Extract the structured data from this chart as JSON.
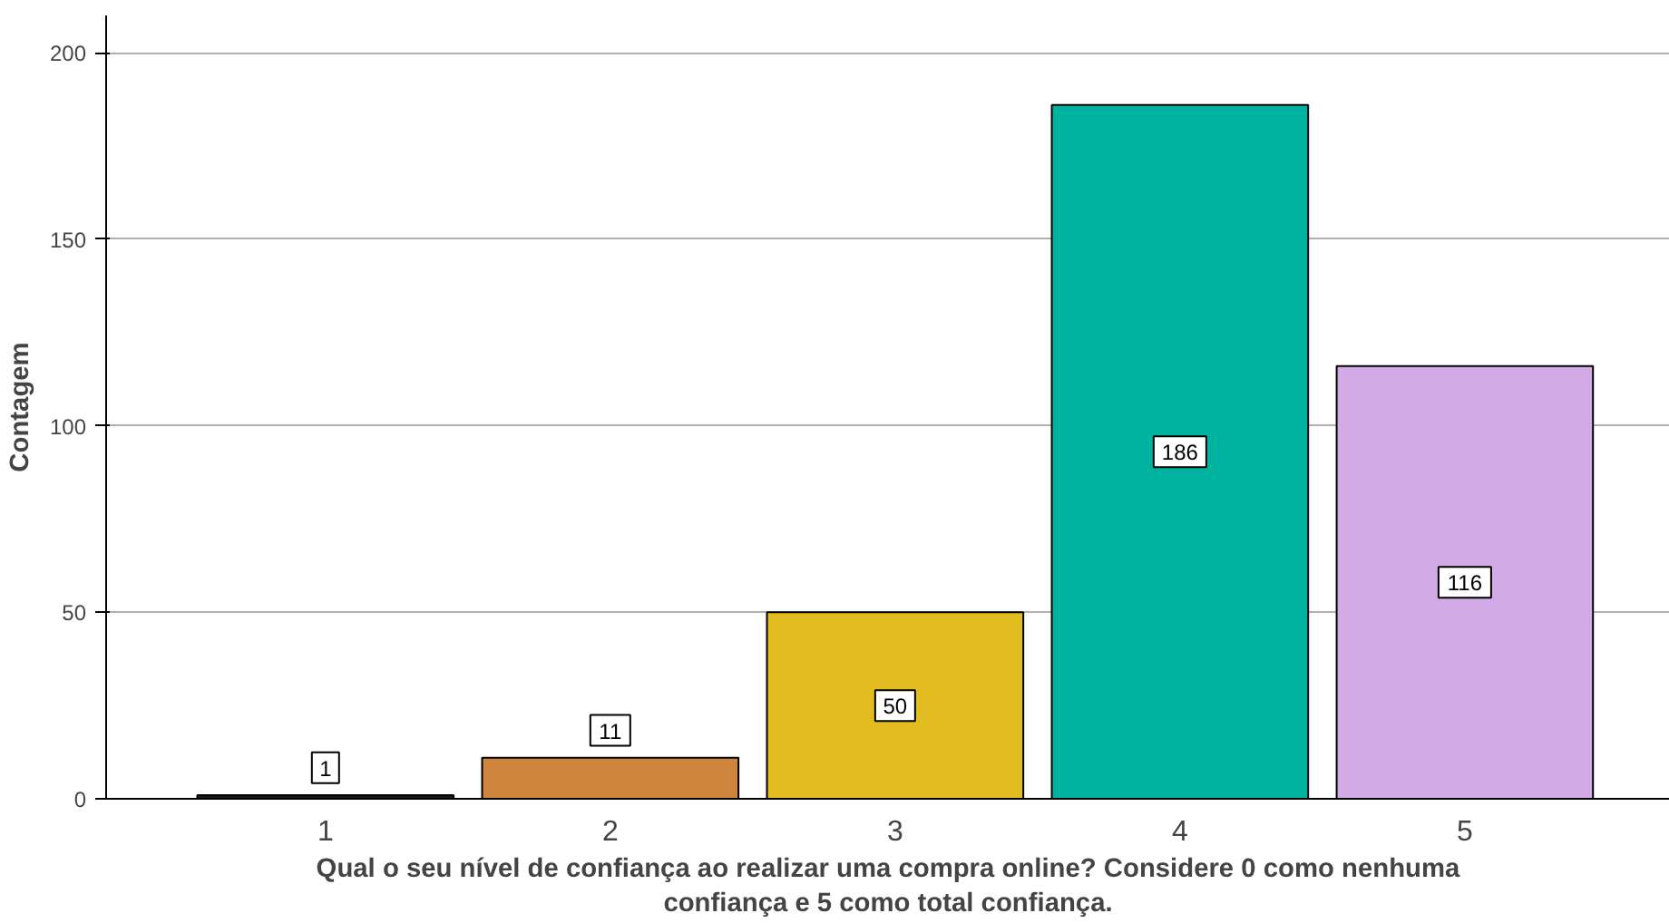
{
  "chart_data": {
    "type": "bar",
    "xlabel": "Qual o seu nível de confiança ao realizar uma compra online? Considere 0 como nenhuma confiança e 5 como total confiança.",
    "ylabel": "Contagem",
    "categories": [
      "1",
      "2",
      "3",
      "4",
      "5"
    ],
    "values": [
      1,
      11,
      50,
      186,
      116
    ],
    "colors": [
      "#1a1a1a",
      "#d0853f",
      "#e1bd1f",
      "#00b39f",
      "#d2aae5"
    ],
    "ylim": [
      0,
      210
    ],
    "yticks": [
      0,
      50,
      100,
      150,
      200
    ],
    "grid": "y",
    "data_labels": true
  }
}
